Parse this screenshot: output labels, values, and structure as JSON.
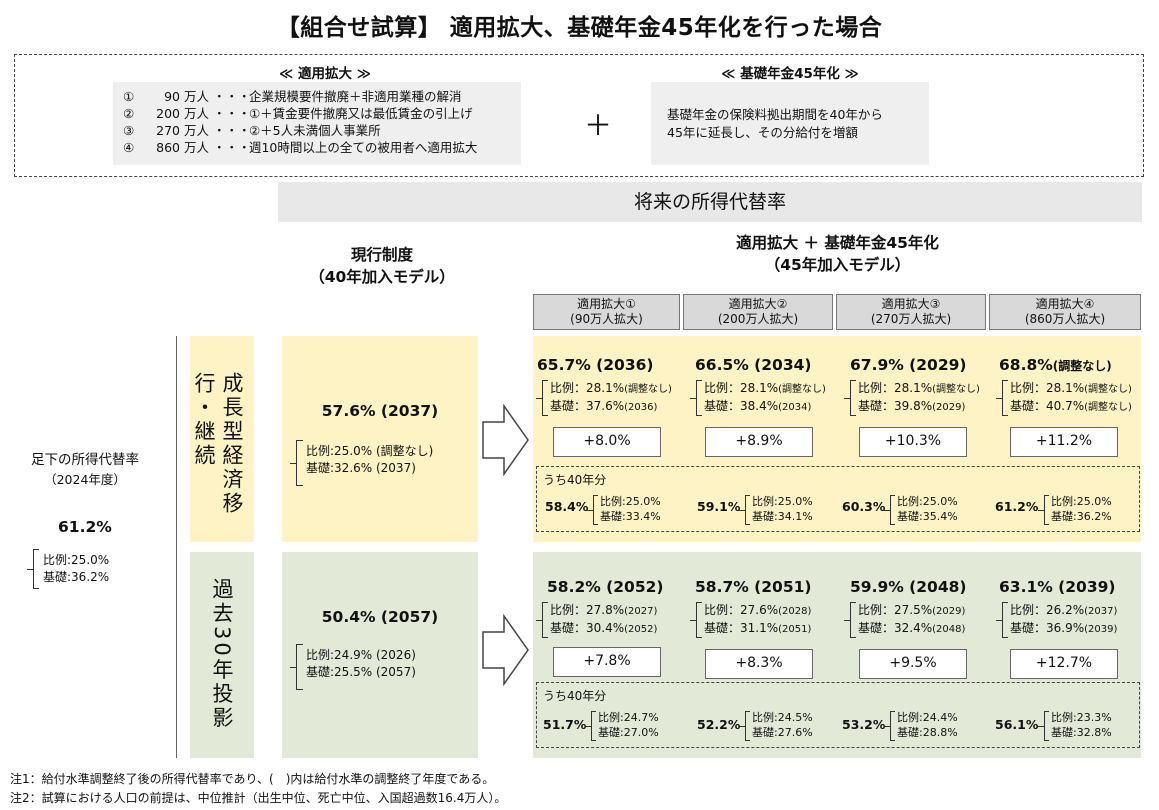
{
  "title": "【組合せ試算】 適用拡大、基礎年金45年化を行った場合",
  "expansion": {
    "heading": "≪ 適用拡大 ≫",
    "items": [
      {
        "num": "①",
        "amount": "90 万人",
        "dots": "・・・",
        "desc": "企業規模要件撤廃＋非適用業種の解消"
      },
      {
        "num": "②",
        "amount": "200 万人",
        "dots": "・・・",
        "desc": "①＋賃金要件撤廃又は最低賃金の引上げ"
      },
      {
        "num": "③",
        "amount": "270 万人",
        "dots": "・・・",
        "desc": "②＋5人未満個人事業所"
      },
      {
        "num": "④",
        "amount": "860 万人",
        "dots": "・・・",
        "desc": "週10時間以上の全ての被用者へ適用拡大"
      }
    ]
  },
  "plus_symbol": "＋",
  "kiso45": {
    "heading": "≪ 基礎年金45年化 ≫",
    "line1": "基礎年金の保険料拠出期間を40年から",
    "line2": "45年に延長し、その分給付を増額"
  },
  "banner": "将来の所得代替率",
  "current_header": {
    "line1": "現行制度",
    "line2": "（40年加入モデル）"
  },
  "combined_header": {
    "line1": "適用拡大 ＋ 基礎年金45年化",
    "line2": "（45年加入モデル）"
  },
  "col_headers": [
    {
      "line1": "適用拡大①",
      "line2": "(90万人拡大)"
    },
    {
      "line1": "適用拡大②",
      "line2": "(200万人拡大)"
    },
    {
      "line1": "適用拡大③",
      "line2": "(270万人拡大)"
    },
    {
      "line1": "適用拡大④",
      "line2": "(860万人拡大)"
    }
  ],
  "baseline": {
    "label1": "足下の所得代替率",
    "label2": "（2024年度）",
    "value": "61.2%",
    "hirei": "比例:25.0%",
    "kiso": "基礎:36.2%"
  },
  "scenarios": [
    {
      "label": "成長型経済移行・継続",
      "current": {
        "value": "57.6% (2037)",
        "hirei": "比例:25.0% (調整なし)",
        "kiso": "基礎:32.6% (2037)"
      },
      "cols": [
        {
          "main": "65.7% (2036)",
          "hirei": "比例：28.1%",
          "hirei_note": "(調整なし)",
          "kiso": "基礎：37.6%",
          "kiso_note": "(2036)",
          "delta": "+8.0%",
          "u_val": "58.4%",
          "u_hirei": "比例:25.0%",
          "u_kiso": "基礎:33.4%"
        },
        {
          "main": "66.5% (2034)",
          "hirei": "比例：28.1%",
          "hirei_note": "(調整なし)",
          "kiso": "基礎：38.4%",
          "kiso_note": "(2034)",
          "delta": "+8.9%",
          "u_val": "59.1%",
          "u_hirei": "比例:25.0%",
          "u_kiso": "基礎:34.1%"
        },
        {
          "main": "67.9% (2029)",
          "hirei": "比例：28.1%",
          "hirei_note": "(調整なし)",
          "kiso": "基礎：39.8%",
          "kiso_note": "(2029)",
          "delta": "+10.3%",
          "u_val": "60.3%",
          "u_hirei": "比例:25.0%",
          "u_kiso": "基礎:35.4%"
        },
        {
          "main": "68.8%",
          "main_note": "(調整なし)",
          "hirei": "比例：28.1%",
          "hirei_note": "(調整なし)",
          "kiso": "基礎：40.7%",
          "kiso_note": "(調整なし)",
          "delta": "+11.2%",
          "u_val": "61.2%",
          "u_hirei": "比例:25.0%",
          "u_kiso": "基礎:36.2%"
        }
      ]
    },
    {
      "label": "過去30年投影",
      "current": {
        "value": "50.4% (2057)",
        "hirei": "比例:24.9% (2026)",
        "kiso": "基礎:25.5% (2057)"
      },
      "cols": [
        {
          "main": "58.2% (2052)",
          "hirei": "比例：27.8%",
          "hirei_note": "(2027)",
          "kiso": "基礎：30.4%",
          "kiso_note": "(2052)",
          "delta": "+7.8%",
          "u_val": "51.7%",
          "u_hirei": "比例:24.7%",
          "u_kiso": "基礎:27.0%"
        },
        {
          "main": "58.7% (2051)",
          "hirei": "比例：27.6%",
          "hirei_note": "(2028)",
          "kiso": "基礎：31.1%",
          "kiso_note": "(2051)",
          "delta": "+8.3%",
          "u_val": "52.2%",
          "u_hirei": "比例:24.5%",
          "u_kiso": "基礎:27.6%"
        },
        {
          "main": "59.9% (2048)",
          "hirei": "比例：27.5%",
          "hirei_note": "(2029)",
          "kiso": "基礎：32.4%",
          "kiso_note": "(2048)",
          "delta": "+9.5%",
          "u_val": "53.2%",
          "u_hirei": "比例:24.4%",
          "u_kiso": "基礎:28.8%"
        },
        {
          "main": "63.1% (2039)",
          "hirei": "比例：26.2%",
          "hirei_note": "(2037)",
          "kiso": "基礎：36.9%",
          "kiso_note": "(2039)",
          "delta": "+12.7%",
          "u_val": "56.1%",
          "u_hirei": "比例:23.3%",
          "u_kiso": "基礎:32.8%"
        }
      ]
    }
  ],
  "uchi_label": "うち40年分",
  "notes": [
    "注1：給付水準調整終了後の所得代替率であり、(　)内は給付水準の調整終了年度である。",
    "注2：試算における人口の前提は、中位推計（出生中位、死亡中位、入国超過数16.4万人）。"
  ],
  "colors": {
    "yellow": "#fdf3c4",
    "green": "#e2ead7",
    "gray": "#efefef",
    "header_gray": "#d9d9d9"
  }
}
